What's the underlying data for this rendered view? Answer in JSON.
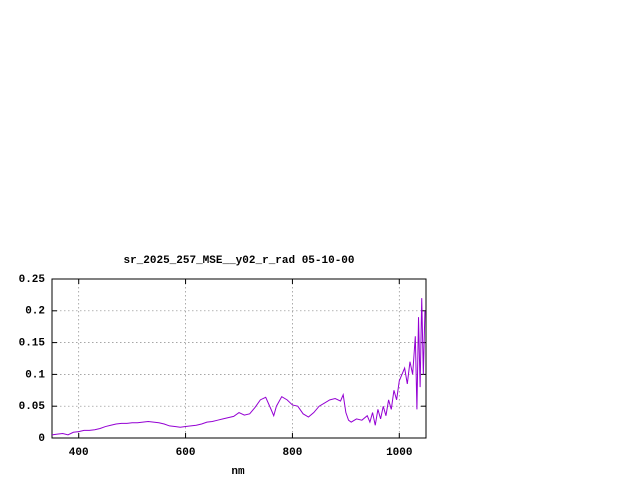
{
  "chart_data": {
    "type": "line",
    "title": "sr_2025_257_MSE__y02_r_rad 05-10-00",
    "x_label": "nm",
    "x": [
      350,
      360,
      370,
      380,
      390,
      400,
      410,
      420,
      430,
      440,
      450,
      460,
      470,
      480,
      490,
      500,
      510,
      520,
      530,
      540,
      550,
      560,
      570,
      580,
      590,
      600,
      610,
      620,
      630,
      640,
      650,
      660,
      670,
      680,
      690,
      700,
      710,
      720,
      730,
      740,
      750,
      760,
      765,
      770,
      780,
      790,
      800,
      810,
      820,
      830,
      840,
      850,
      860,
      870,
      880,
      890,
      895,
      900,
      905,
      910,
      920,
      930,
      940,
      945,
      950,
      955,
      960,
      965,
      970,
      975,
      980,
      985,
      990,
      995,
      1000,
      1005,
      1010,
      1015,
      1020,
      1025,
      1030,
      1033,
      1036,
      1039,
      1042,
      1045,
      1048
    ],
    "values": [
      0.005,
      0.006,
      0.007,
      0.005,
      0.009,
      0.01,
      0.012,
      0.012,
      0.013,
      0.015,
      0.018,
      0.02,
      0.022,
      0.023,
      0.023,
      0.024,
      0.024,
      0.025,
      0.026,
      0.025,
      0.024,
      0.022,
      0.019,
      0.018,
      0.017,
      0.018,
      0.019,
      0.02,
      0.022,
      0.025,
      0.026,
      0.028,
      0.03,
      0.032,
      0.034,
      0.04,
      0.036,
      0.038,
      0.048,
      0.06,
      0.064,
      0.045,
      0.035,
      0.05,
      0.065,
      0.06,
      0.052,
      0.05,
      0.038,
      0.033,
      0.04,
      0.05,
      0.055,
      0.06,
      0.062,
      0.058,
      0.068,
      0.04,
      0.028,
      0.025,
      0.03,
      0.028,
      0.035,
      0.025,
      0.04,
      0.02,
      0.045,
      0.03,
      0.05,
      0.035,
      0.06,
      0.045,
      0.075,
      0.06,
      0.09,
      0.1,
      0.11,
      0.085,
      0.12,
      0.1,
      0.16,
      0.045,
      0.19,
      0.08,
      0.22,
      0.1,
      0.2
    ],
    "color": "#9400d3",
    "xlim": [
      350,
      1050
    ],
    "ylim": [
      0,
      0.25
    ],
    "xticks": [
      400,
      600,
      800,
      1000
    ],
    "yticks": [
      0,
      0.05,
      0.1,
      0.15,
      0.2,
      0.25
    ],
    "grid": true
  }
}
